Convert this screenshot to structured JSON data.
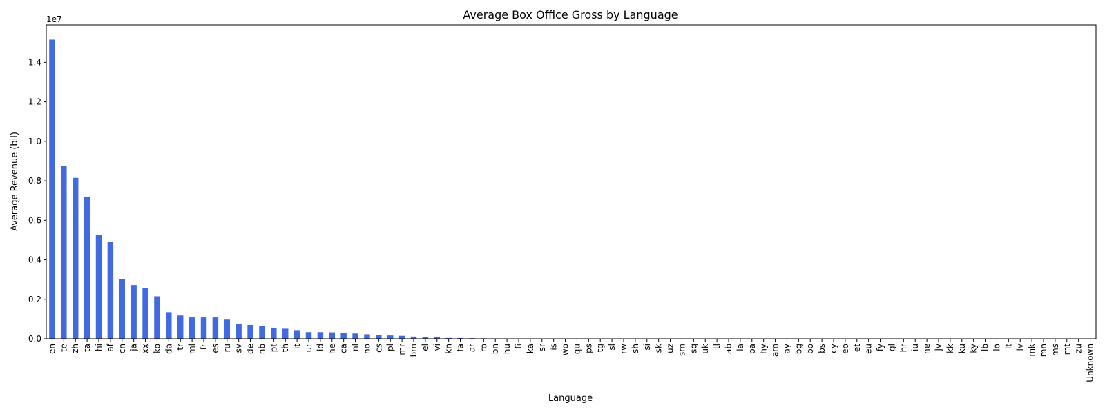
{
  "chart_data": {
    "type": "bar",
    "title": "Average Box Office Gross by Language",
    "xlabel": "Language",
    "ylabel": "Average Revenue (bil)",
    "y_offset_label": "1e7",
    "ylim": [
      0,
      15900000
    ],
    "yticks": [
      0,
      2000000,
      4000000,
      6000000,
      8000000,
      10000000,
      12000000,
      14000000
    ],
    "ytick_labels": [
      "0.0",
      "0.2",
      "0.4",
      "0.6",
      "0.8",
      "1.0",
      "1.2",
      "1.4"
    ],
    "grid": false,
    "bar_color": "#4169e1",
    "categories": [
      "en",
      "te",
      "zh",
      "ta",
      "hi",
      "af",
      "cn",
      "ja",
      "xx",
      "ko",
      "da",
      "tr",
      "ml",
      "fr",
      "es",
      "ru",
      "sv",
      "de",
      "nb",
      "pt",
      "th",
      "it",
      "ur",
      "id",
      "he",
      "ca",
      "nl",
      "no",
      "cs",
      "pl",
      "mr",
      "bm",
      "el",
      "vi",
      "kn",
      "fa",
      "ar",
      "ro",
      "bn",
      "hu",
      "fi",
      "ka",
      "sr",
      "is",
      "wo",
      "qu",
      "ps",
      "tg",
      "sl",
      "rw",
      "sh",
      "si",
      "sk",
      "uz",
      "sm",
      "sq",
      "uk",
      "tl",
      "ab",
      "la",
      "pa",
      "hy",
      "am",
      "ay",
      "bg",
      "bo",
      "bs",
      "cy",
      "eo",
      "et",
      "eu",
      "fy",
      "gl",
      "hr",
      "iu",
      "ne",
      "jv",
      "kk",
      "ku",
      "ky",
      "lb",
      "lo",
      "lt",
      "lv",
      "mk",
      "mn",
      "ms",
      "mt",
      "zu",
      "Unknown"
    ],
    "values": [
      15150000,
      8750000,
      8150000,
      7200000,
      5250000,
      4920000,
      3020000,
      2720000,
      2550000,
      2150000,
      1350000,
      1180000,
      1080000,
      1080000,
      1080000,
      970000,
      760000,
      700000,
      650000,
      560000,
      510000,
      440000,
      340000,
      340000,
      330000,
      300000,
      270000,
      230000,
      200000,
      170000,
      150000,
      110000,
      80000,
      70000,
      40000,
      40000,
      30000,
      25000,
      20000,
      10000,
      5000,
      3000,
      2000,
      1000,
      1000,
      0,
      0,
      0,
      0,
      0,
      0,
      0,
      0,
      0,
      0,
      0,
      0,
      0,
      0,
      0,
      0,
      0,
      0,
      0,
      0,
      0,
      0,
      0,
      0,
      0,
      0,
      0,
      0,
      0,
      0,
      0,
      0,
      0,
      0,
      0,
      0,
      0,
      0,
      0,
      0,
      0,
      0,
      0,
      0,
      0
    ]
  }
}
